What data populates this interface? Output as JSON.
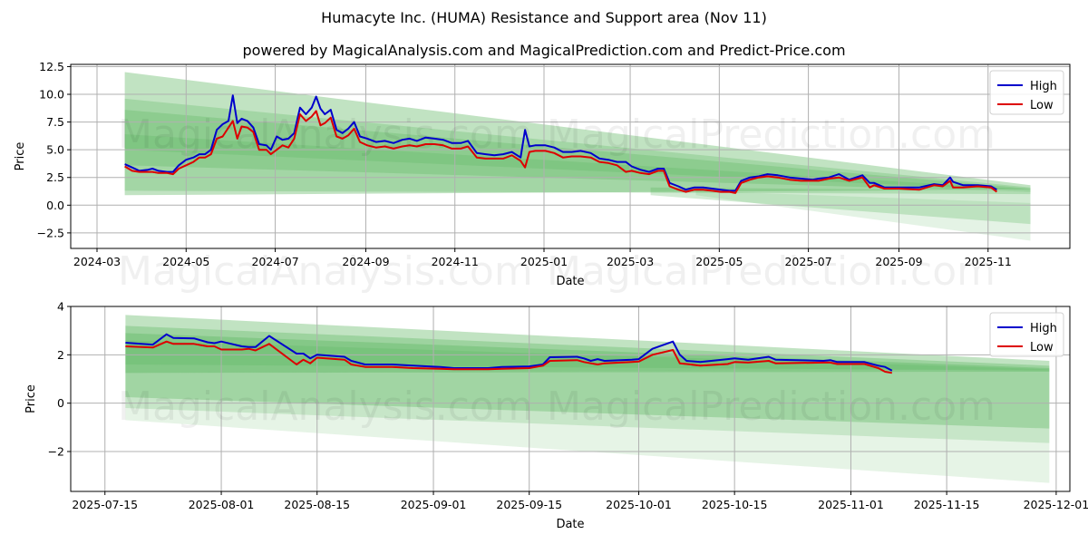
{
  "header": {
    "title": "Humacyte Inc. (HUMA) Resistance and Support area (Nov 11)",
    "subtitle": "powered by MagicalAnalysis.com and MagicalPrediction.com and Predict-Price.com"
  },
  "watermarks": [
    "MagicalAnalysis.com",
    "MagicalPrediction.com"
  ],
  "colors": {
    "high": "#0000cc",
    "low": "#dd0000",
    "band": "#4caf50",
    "grid": "#b0b0b0"
  },
  "chart_data": [
    {
      "type": "line",
      "title": "",
      "xlabel": "Date",
      "ylabel": "Price",
      "xlim": [
        "2024-02-12",
        "2025-12-27"
      ],
      "ylim": [
        -3.9,
        12.7
      ],
      "grid": true,
      "legend_position": "upper right",
      "legend": [
        "High",
        "Low"
      ],
      "xticks": [
        "2024-03",
        "2024-05",
        "2024-07",
        "2024-09",
        "2024-11",
        "2025-01",
        "2025-03",
        "2025-05",
        "2025-07",
        "2025-09",
        "2025-11"
      ],
      "yticks": [
        "-2.5",
        "0.0",
        "2.5",
        "5.0",
        "7.5",
        "10.0",
        "12.5"
      ],
      "bands": {
        "start": "2024-03-20",
        "end": "2025-11-30",
        "layers": [
          {
            "top_start": 12.0,
            "bot_start": 0.9,
            "top_end": 1.8,
            "bot_end": 1.4,
            "opacity": 0.35
          },
          {
            "top_start": 9.6,
            "bot_start": 1.3,
            "top_end": 1.6,
            "bot_end": 1.0,
            "opacity": 0.25
          },
          {
            "top_start": 8.6,
            "bot_start": 3.6,
            "top_end": 1.5,
            "bot_end": 1.2,
            "opacity": 0.25
          },
          {
            "top_start": 6.4,
            "bot_start": 5.0,
            "top_end": 1.4,
            "bot_end": 1.3,
            "opacity": 0.2
          },
          {
            "top_start": 1.6,
            "bot_start": 0.9,
            "top_end": 1.3,
            "bot_end": -1.7,
            "opacity": 0.25,
            "start": "2025-03-15"
          },
          {
            "top_start": 1.3,
            "bot_start": 0.9,
            "top_end": 0.2,
            "bot_end": -3.2,
            "opacity": 0.15,
            "start": "2025-04-15"
          }
        ]
      },
      "series": [
        {
          "name": "High",
          "x": [
            "2024-03-20",
            "2024-03-25",
            "2024-03-30",
            "2024-04-05",
            "2024-04-08",
            "2024-04-12",
            "2024-04-18",
            "2024-04-22",
            "2024-04-26",
            "2024-05-01",
            "2024-05-06",
            "2024-05-10",
            "2024-05-14",
            "2024-05-18",
            "2024-05-22",
            "2024-05-26",
            "2024-05-30",
            "2024-06-02",
            "2024-06-05",
            "2024-06-08",
            "2024-06-12",
            "2024-06-16",
            "2024-06-20",
            "2024-06-25",
            "2024-06-28",
            "2024-07-02",
            "2024-07-06",
            "2024-07-10",
            "2024-07-14",
            "2024-07-18",
            "2024-07-22",
            "2024-07-26",
            "2024-07-29",
            "2024-08-01",
            "2024-08-04",
            "2024-08-08",
            "2024-08-12",
            "2024-08-16",
            "2024-08-20",
            "2024-08-24",
            "2024-08-28",
            "2024-09-02",
            "2024-09-08",
            "2024-09-14",
            "2024-09-20",
            "2024-09-26",
            "2024-10-01",
            "2024-10-06",
            "2024-10-12",
            "2024-10-18",
            "2024-10-24",
            "2024-10-30",
            "2024-11-05",
            "2024-11-10",
            "2024-11-16",
            "2024-11-22",
            "2024-11-28",
            "2024-12-04",
            "2024-12-10",
            "2024-12-16",
            "2024-12-19",
            "2024-12-22",
            "2024-12-26",
            "2025-01-02",
            "2025-01-08",
            "2025-01-14",
            "2025-01-20",
            "2025-01-26",
            "2025-02-02",
            "2025-02-08",
            "2025-02-14",
            "2025-02-20",
            "2025-02-26",
            "2025-03-02",
            "2025-03-08",
            "2025-03-14",
            "2025-03-20",
            "2025-03-24",
            "2025-03-28",
            "2025-04-03",
            "2025-04-08",
            "2025-04-14",
            "2025-04-20",
            "2025-04-26",
            "2025-05-02",
            "2025-05-08",
            "2025-05-12",
            "2025-05-16",
            "2025-05-22",
            "2025-05-28",
            "2025-06-03",
            "2025-06-10",
            "2025-06-18",
            "2025-06-26",
            "2025-07-04",
            "2025-07-08",
            "2025-07-15",
            "2025-07-22",
            "2025-07-29",
            "2025-08-07",
            "2025-08-12",
            "2025-08-15",
            "2025-08-22",
            "2025-09-01",
            "2025-09-15",
            "2025-09-25",
            "2025-10-01",
            "2025-10-06",
            "2025-10-08",
            "2025-10-15",
            "2025-10-25",
            "2025-11-03",
            "2025-11-07"
          ],
          "values": [
            3.7,
            3.4,
            3.1,
            3.2,
            3.3,
            3.1,
            3.0,
            3.0,
            3.6,
            4.1,
            4.3,
            4.6,
            4.6,
            5.0,
            6.8,
            7.3,
            7.6,
            9.9,
            7.4,
            7.8,
            7.6,
            7.0,
            5.5,
            5.4,
            5.0,
            6.2,
            5.9,
            6.0,
            6.5,
            8.8,
            8.2,
            8.8,
            9.8,
            8.7,
            8.2,
            8.6,
            6.8,
            6.5,
            6.9,
            7.5,
            6.2,
            6.0,
            5.7,
            5.8,
            5.6,
            5.9,
            6.0,
            5.8,
            6.1,
            6.0,
            5.9,
            5.6,
            5.6,
            5.8,
            4.7,
            4.6,
            4.5,
            4.6,
            4.8,
            4.3,
            6.8,
            5.3,
            5.4,
            5.4,
            5.2,
            4.8,
            4.8,
            4.9,
            4.7,
            4.2,
            4.1,
            3.9,
            3.9,
            3.5,
            3.2,
            3.0,
            3.3,
            3.3,
            2.0,
            1.7,
            1.4,
            1.6,
            1.6,
            1.5,
            1.4,
            1.3,
            1.3,
            2.2,
            2.5,
            2.6,
            2.8,
            2.7,
            2.5,
            2.4,
            2.3,
            2.4,
            2.5,
            2.8,
            2.3,
            2.7,
            2.0,
            2.0,
            1.6,
            1.6,
            1.6,
            1.9,
            1.8,
            2.5,
            2.1,
            1.8,
            1.8,
            1.7,
            1.4
          ]
        },
        {
          "name": "Low",
          "x": [
            "2024-03-20",
            "2024-03-25",
            "2024-03-30",
            "2024-04-05",
            "2024-04-08",
            "2024-04-12",
            "2024-04-18",
            "2024-04-22",
            "2024-04-26",
            "2024-05-01",
            "2024-05-06",
            "2024-05-10",
            "2024-05-14",
            "2024-05-18",
            "2024-05-22",
            "2024-05-26",
            "2024-05-30",
            "2024-06-02",
            "2024-06-05",
            "2024-06-08",
            "2024-06-12",
            "2024-06-16",
            "2024-06-20",
            "2024-06-25",
            "2024-06-28",
            "2024-07-02",
            "2024-07-06",
            "2024-07-10",
            "2024-07-14",
            "2024-07-18",
            "2024-07-22",
            "2024-07-26",
            "2024-07-29",
            "2024-08-01",
            "2024-08-04",
            "2024-08-08",
            "2024-08-12",
            "2024-08-16",
            "2024-08-20",
            "2024-08-24",
            "2024-08-28",
            "2024-09-02",
            "2024-09-08",
            "2024-09-14",
            "2024-09-20",
            "2024-09-26",
            "2024-10-01",
            "2024-10-06",
            "2024-10-12",
            "2024-10-18",
            "2024-10-24",
            "2024-10-30",
            "2024-11-05",
            "2024-11-10",
            "2024-11-16",
            "2024-11-22",
            "2024-11-28",
            "2024-12-04",
            "2024-12-10",
            "2024-12-16",
            "2024-12-19",
            "2024-12-22",
            "2024-12-26",
            "2025-01-02",
            "2025-01-08",
            "2025-01-14",
            "2025-01-20",
            "2025-01-26",
            "2025-02-02",
            "2025-02-08",
            "2025-02-14",
            "2025-02-20",
            "2025-02-26",
            "2025-03-02",
            "2025-03-08",
            "2025-03-14",
            "2025-03-20",
            "2025-03-24",
            "2025-03-28",
            "2025-04-03",
            "2025-04-08",
            "2025-04-14",
            "2025-04-20",
            "2025-04-26",
            "2025-05-02",
            "2025-05-08",
            "2025-05-12",
            "2025-05-16",
            "2025-05-22",
            "2025-05-28",
            "2025-06-03",
            "2025-06-10",
            "2025-06-18",
            "2025-06-26",
            "2025-07-04",
            "2025-07-08",
            "2025-07-15",
            "2025-07-22",
            "2025-07-29",
            "2025-08-07",
            "2025-08-12",
            "2025-08-15",
            "2025-08-22",
            "2025-09-01",
            "2025-09-15",
            "2025-09-25",
            "2025-10-01",
            "2025-10-06",
            "2025-10-08",
            "2025-10-15",
            "2025-10-25",
            "2025-11-03",
            "2025-11-07"
          ],
          "values": [
            3.5,
            3.1,
            3.0,
            3.0,
            3.0,
            2.9,
            2.9,
            2.8,
            3.3,
            3.6,
            3.9,
            4.3,
            4.3,
            4.6,
            6.0,
            6.2,
            7.0,
            7.6,
            6.0,
            7.1,
            7.0,
            6.6,
            5.0,
            5.0,
            4.6,
            5.0,
            5.4,
            5.2,
            6.0,
            8.2,
            7.6,
            8.0,
            8.5,
            7.2,
            7.4,
            7.9,
            6.2,
            6.0,
            6.3,
            6.9,
            5.7,
            5.4,
            5.2,
            5.3,
            5.1,
            5.3,
            5.4,
            5.3,
            5.5,
            5.5,
            5.4,
            5.1,
            5.1,
            5.3,
            4.3,
            4.2,
            4.2,
            4.2,
            4.5,
            4.0,
            3.4,
            4.8,
            4.9,
            4.9,
            4.7,
            4.3,
            4.4,
            4.4,
            4.3,
            3.9,
            3.8,
            3.6,
            3.0,
            3.1,
            2.9,
            2.8,
            3.1,
            3.1,
            1.7,
            1.4,
            1.2,
            1.4,
            1.4,
            1.3,
            1.2,
            1.2,
            1.1,
            2.0,
            2.3,
            2.5,
            2.6,
            2.5,
            2.3,
            2.2,
            2.2,
            2.2,
            2.4,
            2.5,
            2.2,
            2.5,
            1.6,
            1.8,
            1.5,
            1.5,
            1.4,
            1.8,
            1.7,
            2.2,
            1.6,
            1.6,
            1.7,
            1.6,
            1.2
          ]
        }
      ]
    },
    {
      "type": "line",
      "title": "",
      "xlabel": "Date",
      "ylabel": "Price",
      "xlim": [
        "2025-07-10",
        "2025-12-03"
      ],
      "ylim": [
        -3.65,
        4.0
      ],
      "grid": true,
      "legend_position": "upper right",
      "legend": [
        "High",
        "Low"
      ],
      "xticks": [
        "2025-07-15",
        "2025-08-01",
        "2025-08-15",
        "2025-09-01",
        "2025-09-15",
        "2025-10-01",
        "2025-10-15",
        "2025-11-01",
        "2025-11-15",
        "2025-12-01"
      ],
      "yticks": [
        "-2",
        "0",
        "2",
        "4"
      ],
      "bands": {
        "start": "2025-07-18",
        "end": "2025-11-30",
        "layers": [
          {
            "top_start": 3.65,
            "bot_start": 1.25,
            "top_end": 1.75,
            "bot_end": 1.4,
            "opacity": 0.35
          },
          {
            "top_start": 3.2,
            "bot_start": 1.25,
            "top_end": 1.55,
            "bot_end": 1.4,
            "opacity": 0.3
          },
          {
            "top_start": 2.9,
            "bot_start": 1.25,
            "top_end": 1.45,
            "bot_end": 1.3,
            "opacity": 0.3
          },
          {
            "top_start": 2.6,
            "bot_start": 1.6,
            "top_end": 1.4,
            "bot_end": 1.35,
            "opacity": 0.2
          },
          {
            "top_start": 1.25,
            "bot_start": 0.25,
            "top_end": 1.4,
            "bot_end": -1.05,
            "opacity": 0.3
          },
          {
            "top_start": 1.25,
            "bot_start": -0.2,
            "top_end": 1.4,
            "bot_end": -1.65,
            "opacity": 0.2
          },
          {
            "top_start": 1.25,
            "bot_start": -0.7,
            "top_end": 1.4,
            "bot_end": -3.3,
            "opacity": 0.14
          }
        ]
      },
      "series": [
        {
          "name": "High",
          "x": [
            "2025-07-18",
            "2025-07-22",
            "2025-07-24",
            "2025-07-25",
            "2025-07-28",
            "2025-07-30",
            "2025-07-31",
            "2025-08-01",
            "2025-08-04",
            "2025-08-05",
            "2025-08-06",
            "2025-08-08",
            "2025-08-12",
            "2025-08-13",
            "2025-08-14",
            "2025-08-15",
            "2025-08-19",
            "2025-08-20",
            "2025-08-22",
            "2025-08-25",
            "2025-08-26",
            "2025-08-29",
            "2025-09-02",
            "2025-09-04",
            "2025-09-09",
            "2025-09-11",
            "2025-09-15",
            "2025-09-17",
            "2025-09-18",
            "2025-09-22",
            "2025-09-23",
            "2025-09-24",
            "2025-09-25",
            "2025-09-26",
            "2025-09-30",
            "2025-10-01",
            "2025-10-03",
            "2025-10-06",
            "2025-10-07",
            "2025-10-08",
            "2025-10-10",
            "2025-10-14",
            "2025-10-15",
            "2025-10-17",
            "2025-10-20",
            "2025-10-21",
            "2025-10-28",
            "2025-10-29",
            "2025-10-30",
            "2025-11-03",
            "2025-11-05",
            "2025-11-06",
            "2025-11-07"
          ],
          "values": [
            2.5,
            2.42,
            2.85,
            2.7,
            2.68,
            2.52,
            2.48,
            2.55,
            2.35,
            2.32,
            2.32,
            2.78,
            2.05,
            2.05,
            1.85,
            2.0,
            1.92,
            1.75,
            1.6,
            1.6,
            1.6,
            1.55,
            1.5,
            1.45,
            1.45,
            1.5,
            1.52,
            1.6,
            1.9,
            1.92,
            1.85,
            1.75,
            1.82,
            1.75,
            1.8,
            1.82,
            2.25,
            2.55,
            2.0,
            1.75,
            1.7,
            1.82,
            1.85,
            1.8,
            1.92,
            1.8,
            1.75,
            1.78,
            1.7,
            1.7,
            1.55,
            1.5,
            1.35
          ]
        },
        {
          "name": "Low",
          "x": [
            "2025-07-18",
            "2025-07-22",
            "2025-07-24",
            "2025-07-25",
            "2025-07-28",
            "2025-07-30",
            "2025-07-31",
            "2025-08-01",
            "2025-08-04",
            "2025-08-05",
            "2025-08-06",
            "2025-08-08",
            "2025-08-12",
            "2025-08-13",
            "2025-08-14",
            "2025-08-15",
            "2025-08-19",
            "2025-08-20",
            "2025-08-22",
            "2025-08-25",
            "2025-08-26",
            "2025-08-29",
            "2025-09-02",
            "2025-09-04",
            "2025-09-09",
            "2025-09-11",
            "2025-09-15",
            "2025-09-17",
            "2025-09-18",
            "2025-09-22",
            "2025-09-23",
            "2025-09-24",
            "2025-09-25",
            "2025-09-26",
            "2025-09-30",
            "2025-10-01",
            "2025-10-03",
            "2025-10-06",
            "2025-10-07",
            "2025-10-08",
            "2025-10-10",
            "2025-10-14",
            "2025-10-15",
            "2025-10-17",
            "2025-10-20",
            "2025-10-21",
            "2025-10-28",
            "2025-10-29",
            "2025-10-30",
            "2025-11-03",
            "2025-11-05",
            "2025-11-06",
            "2025-11-07"
          ],
          "values": [
            2.35,
            2.3,
            2.55,
            2.45,
            2.45,
            2.35,
            2.35,
            2.22,
            2.22,
            2.25,
            2.18,
            2.45,
            1.6,
            1.8,
            1.65,
            1.88,
            1.8,
            1.6,
            1.5,
            1.5,
            1.5,
            1.45,
            1.42,
            1.4,
            1.4,
            1.42,
            1.45,
            1.55,
            1.75,
            1.78,
            1.7,
            1.65,
            1.6,
            1.65,
            1.7,
            1.72,
            2.0,
            2.2,
            1.65,
            1.62,
            1.55,
            1.62,
            1.7,
            1.68,
            1.75,
            1.65,
            1.68,
            1.68,
            1.62,
            1.62,
            1.45,
            1.3,
            1.25
          ]
        }
      ]
    }
  ]
}
